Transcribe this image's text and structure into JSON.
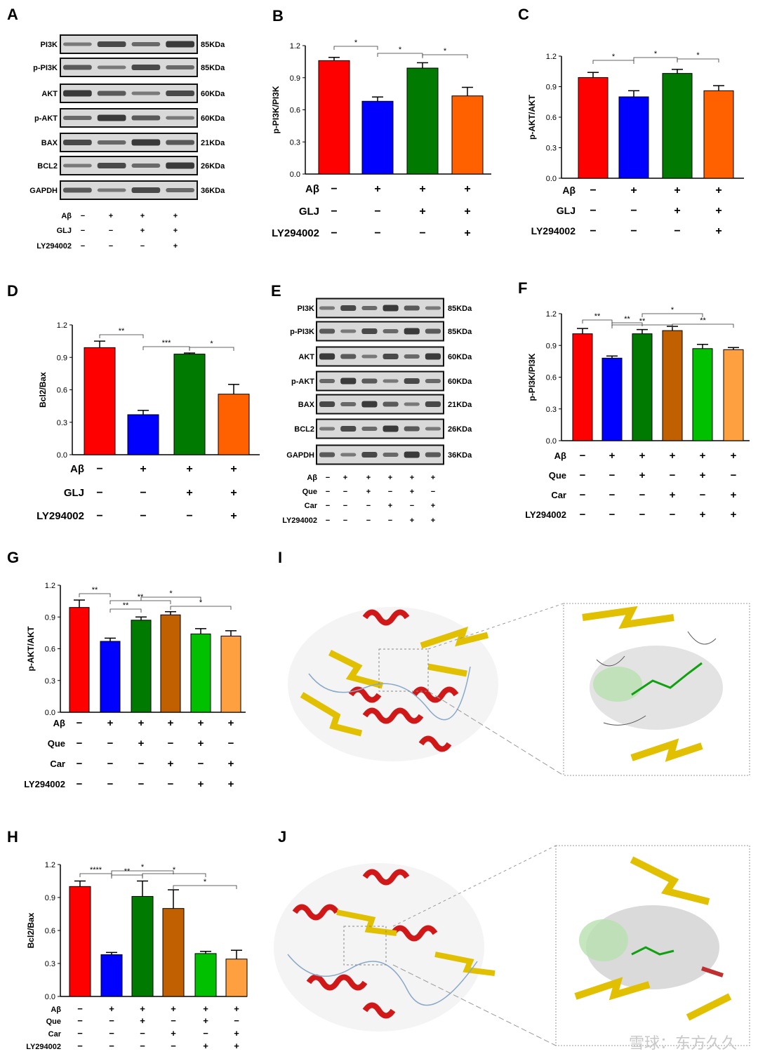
{
  "panels": {
    "A": {
      "letter": "A",
      "bands": [
        "PI3K",
        "p-PI3K",
        "AKT",
        "p-AKT",
        "BAX",
        "BCL2",
        "GAPDH"
      ],
      "kda": [
        "85KDa",
        "85KDa",
        "60KDa",
        "60KDa",
        "21KDa",
        "26KDa",
        "36KDa"
      ],
      "conditions": [
        {
          "name": "Aβ",
          "signs": [
            "−",
            "+",
            "+",
            "+"
          ]
        },
        {
          "name": "GLJ",
          "signs": [
            "−",
            "−",
            "+",
            "+"
          ]
        },
        {
          "name": "LY294002",
          "signs": [
            "−",
            "−",
            "−",
            "+"
          ]
        }
      ]
    },
    "E": {
      "letter": "E",
      "bands": [
        "PI3K",
        "p-PI3K",
        "AKT",
        "p-AKT",
        "BAX",
        "BCL2",
        "GAPDH"
      ],
      "kda": [
        "85KDa",
        "85KDa",
        "60KDa",
        "60KDa",
        "21KDa",
        "26KDa",
        "36KDa"
      ],
      "conditions": [
        {
          "name": "Aβ",
          "signs": [
            "−",
            "+",
            "+",
            "+",
            "+",
            "+"
          ]
        },
        {
          "name": "Que",
          "signs": [
            "−",
            "−",
            "+",
            "−",
            "+",
            "−"
          ]
        },
        {
          "name": "Car",
          "signs": [
            "−",
            "−",
            "−",
            "+",
            "−",
            "+"
          ]
        },
        {
          "name": "LY294002",
          "signs": [
            "−",
            "−",
            "−",
            "−",
            "+",
            "+"
          ]
        }
      ]
    },
    "I": {
      "letter": "I"
    },
    "J": {
      "letter": "J"
    }
  },
  "chart_data": [
    {
      "id": "B",
      "letter": "B",
      "type": "bar",
      "ylabel": "p-PI3K/PI3K",
      "ylim": [
        0,
        1.2
      ],
      "yticks": [
        "0.0",
        "0.3",
        "0.6",
        "0.9",
        "1.2"
      ],
      "values": [
        1.06,
        0.68,
        0.99,
        0.73
      ],
      "errors": [
        0.03,
        0.04,
        0.05,
        0.08
      ],
      "colors": [
        "#ff0000",
        "#0000ff",
        "#007a00",
        "#ff6000"
      ],
      "significance": [
        "*",
        "*",
        "*"
      ],
      "conditions": [
        {
          "name": "Aβ",
          "signs": [
            "−",
            "+",
            "+",
            "+"
          ]
        },
        {
          "name": "GLJ",
          "signs": [
            "−",
            "−",
            "+",
            "+"
          ]
        },
        {
          "name": "LY294002",
          "signs": [
            "−",
            "−",
            "−",
            "+"
          ]
        }
      ]
    },
    {
      "id": "C",
      "letter": "C",
      "type": "bar",
      "ylabel": "p-AKT/AKT",
      "ylim": [
        0,
        1.2
      ],
      "yticks": [
        "0.0",
        "0.3",
        "0.6",
        "0.9",
        "1.2"
      ],
      "values": [
        0.99,
        0.8,
        1.03,
        0.86
      ],
      "errors": [
        0.05,
        0.06,
        0.04,
        0.05
      ],
      "colors": [
        "#ff0000",
        "#0000ff",
        "#007a00",
        "#ff6000"
      ],
      "significance": [
        "*",
        "*",
        "*"
      ],
      "conditions": [
        {
          "name": "Aβ",
          "signs": [
            "−",
            "+",
            "+",
            "+"
          ]
        },
        {
          "name": "GLJ",
          "signs": [
            "−",
            "−",
            "+",
            "+"
          ]
        },
        {
          "name": "LY294002",
          "signs": [
            "−",
            "−",
            "−",
            "+"
          ]
        }
      ]
    },
    {
      "id": "D",
      "letter": "D",
      "type": "bar",
      "ylabel": "Bcl2/Bax",
      "ylim": [
        0,
        1.2
      ],
      "yticks": [
        "0.0",
        "0.3",
        "0.6",
        "0.9",
        "1.2"
      ],
      "values": [
        0.99,
        0.37,
        0.93,
        0.56
      ],
      "errors": [
        0.06,
        0.04,
        0.01,
        0.09
      ],
      "colors": [
        "#ff0000",
        "#0000ff",
        "#007a00",
        "#ff6000"
      ],
      "significance": [
        "**",
        "***",
        "*"
      ],
      "conditions": [
        {
          "name": "Aβ",
          "signs": [
            "−",
            "+",
            "+",
            "+"
          ]
        },
        {
          "name": "GLJ",
          "signs": [
            "−",
            "−",
            "+",
            "+"
          ]
        },
        {
          "name": "LY294002",
          "signs": [
            "−",
            "−",
            "−",
            "+"
          ]
        }
      ]
    },
    {
      "id": "F",
      "letter": "F",
      "type": "bar",
      "ylabel": "p-PI3K/PI3K",
      "ylim": [
        0,
        1.2
      ],
      "yticks": [
        "0.0",
        "0.3",
        "0.6",
        "0.9",
        "1.2"
      ],
      "values": [
        1.01,
        0.78,
        1.01,
        1.04,
        0.87,
        0.86
      ],
      "errors": [
        0.05,
        0.02,
        0.04,
        0.04,
        0.04,
        0.02
      ],
      "colors": [
        "#ff0000",
        "#0000ff",
        "#007a00",
        "#c06000",
        "#00c000",
        "#ffa040"
      ],
      "significance": [
        "**",
        "**",
        "**",
        "*",
        "**"
      ],
      "conditions": [
        {
          "name": "Aβ",
          "signs": [
            "−",
            "+",
            "+",
            "+",
            "+",
            "+"
          ]
        },
        {
          "name": "Que",
          "signs": [
            "−",
            "−",
            "+",
            "−",
            "+",
            "−"
          ]
        },
        {
          "name": "Car",
          "signs": [
            "−",
            "−",
            "−",
            "+",
            "−",
            "+"
          ]
        },
        {
          "name": "LY294002",
          "signs": [
            "−",
            "−",
            "−",
            "−",
            "+",
            "+"
          ]
        }
      ]
    },
    {
      "id": "G",
      "letter": "G",
      "type": "bar",
      "ylabel": "p-AKT/AKT",
      "ylim": [
        0,
        1.2
      ],
      "yticks": [
        "0.0",
        "0.3",
        "0.6",
        "0.9",
        "1.2"
      ],
      "values": [
        0.99,
        0.67,
        0.87,
        0.92,
        0.74,
        0.72
      ],
      "errors": [
        0.07,
        0.03,
        0.03,
        0.03,
        0.05,
        0.05
      ],
      "colors": [
        "#ff0000",
        "#0000ff",
        "#007a00",
        "#c06000",
        "#00c000",
        "#ffa040"
      ],
      "significance": [
        "**",
        "**",
        "**",
        "*",
        "*"
      ],
      "conditions": [
        {
          "name": "Aβ",
          "signs": [
            "−",
            "+",
            "+",
            "+",
            "+",
            "+"
          ]
        },
        {
          "name": "Que",
          "signs": [
            "−",
            "−",
            "+",
            "−",
            "+",
            "−"
          ]
        },
        {
          "name": "Car",
          "signs": [
            "−",
            "−",
            "−",
            "+",
            "−",
            "+"
          ]
        },
        {
          "name": "LY294002",
          "signs": [
            "−",
            "−",
            "−",
            "−",
            "+",
            "+"
          ]
        }
      ]
    },
    {
      "id": "H",
      "letter": "H",
      "type": "bar",
      "ylabel": "Bcl2/Bax",
      "ylim": [
        0,
        1.2
      ],
      "yticks": [
        "0.0",
        "0.3",
        "0.6",
        "0.9",
        "1.2"
      ],
      "values": [
        1.0,
        0.38,
        0.91,
        0.8,
        0.39,
        0.34
      ],
      "errors": [
        0.05,
        0.02,
        0.14,
        0.17,
        0.02,
        0.08
      ],
      "colors": [
        "#ff0000",
        "#0000ff",
        "#007a00",
        "#c06000",
        "#00c000",
        "#ffa040"
      ],
      "significance": [
        "****",
        "**",
        "*",
        "*",
        "*"
      ],
      "conditions": [
        {
          "name": "Aβ",
          "signs": [
            "−",
            "+",
            "+",
            "+",
            "+",
            "+"
          ]
        },
        {
          "name": "Que",
          "signs": [
            "−",
            "−",
            "+",
            "−",
            "+",
            "−"
          ]
        },
        {
          "name": "Car",
          "signs": [
            "−",
            "−",
            "−",
            "+",
            "−",
            "+"
          ]
        },
        {
          "name": "LY294002",
          "signs": [
            "−",
            "−",
            "−",
            "−",
            "+",
            "+"
          ]
        }
      ]
    }
  ],
  "watermark": "雪球：东方久久"
}
